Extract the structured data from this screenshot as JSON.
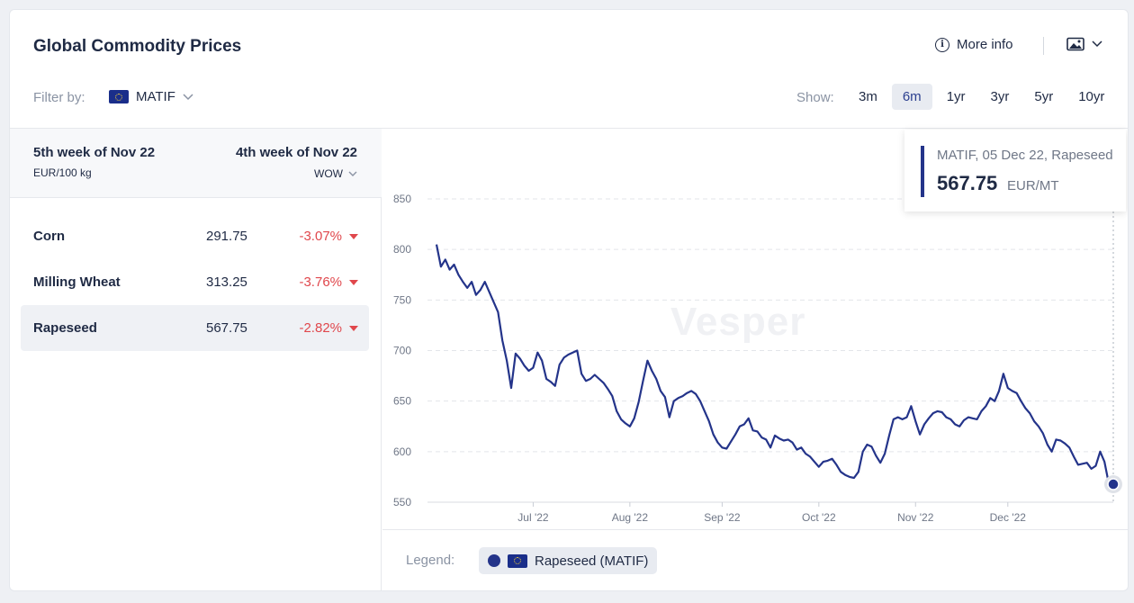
{
  "header": {
    "title": "Global Commodity Prices",
    "more_info": "More info"
  },
  "filter": {
    "label": "Filter by:",
    "value": "MATIF"
  },
  "show": {
    "label": "Show:",
    "ranges": [
      "3m",
      "6m",
      "1yr",
      "3yr",
      "5yr",
      "10yr"
    ],
    "active": "6m"
  },
  "table": {
    "current_week": "5th week of Nov 22",
    "unit": "EUR/100 kg",
    "compare_week": "4th week of Nov 22",
    "compare_mode": "WOW",
    "rows": [
      {
        "name": "Corn",
        "value": "291.75",
        "change": "-3.07%"
      },
      {
        "name": "Milling Wheat",
        "value": "313.25",
        "change": "-3.76%"
      },
      {
        "name": "Rapeseed",
        "value": "567.75",
        "change": "-2.82%"
      }
    ],
    "selected": "Rapeseed"
  },
  "watermark": "Vesper",
  "tooltip": {
    "label": "MATIF, 05 Dec 22, Rapeseed",
    "value": "567.75",
    "unit": "EUR/MT"
  },
  "legend": {
    "label": "Legend:",
    "item": "Rapeseed (MATIF)"
  },
  "colors": {
    "series": "#24348a",
    "negative": "#e0474c",
    "accent_bg": "#e8ebf1"
  },
  "chart_data": {
    "type": "line",
    "ylim": [
      550,
      850
    ],
    "yticks": [
      550,
      600,
      650,
      700,
      750,
      800,
      850
    ],
    "xticks": [
      {
        "label": "Jul '22",
        "index": 22
      },
      {
        "label": "Aug '22",
        "index": 44
      },
      {
        "label": "Sep '22",
        "index": 65
      },
      {
        "label": "Oct '22",
        "index": 87
      },
      {
        "label": "Nov '22",
        "index": 109
      },
      {
        "label": "Dec '22",
        "index": 130
      }
    ],
    "grid": true,
    "series": [
      {
        "name": "Rapeseed (MATIF)",
        "values": [
          805,
          783,
          790,
          780,
          785,
          775,
          768,
          762,
          768,
          755,
          760,
          768,
          758,
          748,
          738,
          710,
          690,
          663,
          697,
          692,
          685,
          680,
          683,
          698,
          690,
          672,
          669,
          665,
          686,
          693,
          696,
          698,
          700,
          677,
          670,
          672,
          676,
          672,
          668,
          662,
          655,
          640,
          632,
          628,
          625,
          633,
          649,
          670,
          690,
          680,
          672,
          660,
          654,
          634,
          650,
          653,
          655,
          658,
          660,
          657,
          650,
          640,
          630,
          617,
          609,
          604,
          603,
          610,
          617,
          625,
          627,
          633,
          621,
          620,
          614,
          612,
          604,
          616,
          613,
          611,
          612,
          609,
          602,
          604,
          598,
          595,
          590,
          585,
          590,
          591,
          593,
          587,
          580,
          577,
          575,
          574,
          580,
          600,
          607,
          605,
          596,
          589,
          598,
          616,
          632,
          634,
          632,
          634,
          645,
          630,
          617,
          627,
          633,
          638,
          640,
          639,
          634,
          632,
          627,
          625,
          631,
          634,
          633,
          632,
          640,
          645,
          653,
          650,
          660,
          677,
          663,
          660,
          658,
          650,
          643,
          638,
          630,
          625,
          618,
          607,
          600,
          612,
          611,
          608,
          604,
          595,
          587,
          588,
          589,
          583,
          586,
          600,
          590,
          568,
          567.75
        ]
      }
    ]
  }
}
